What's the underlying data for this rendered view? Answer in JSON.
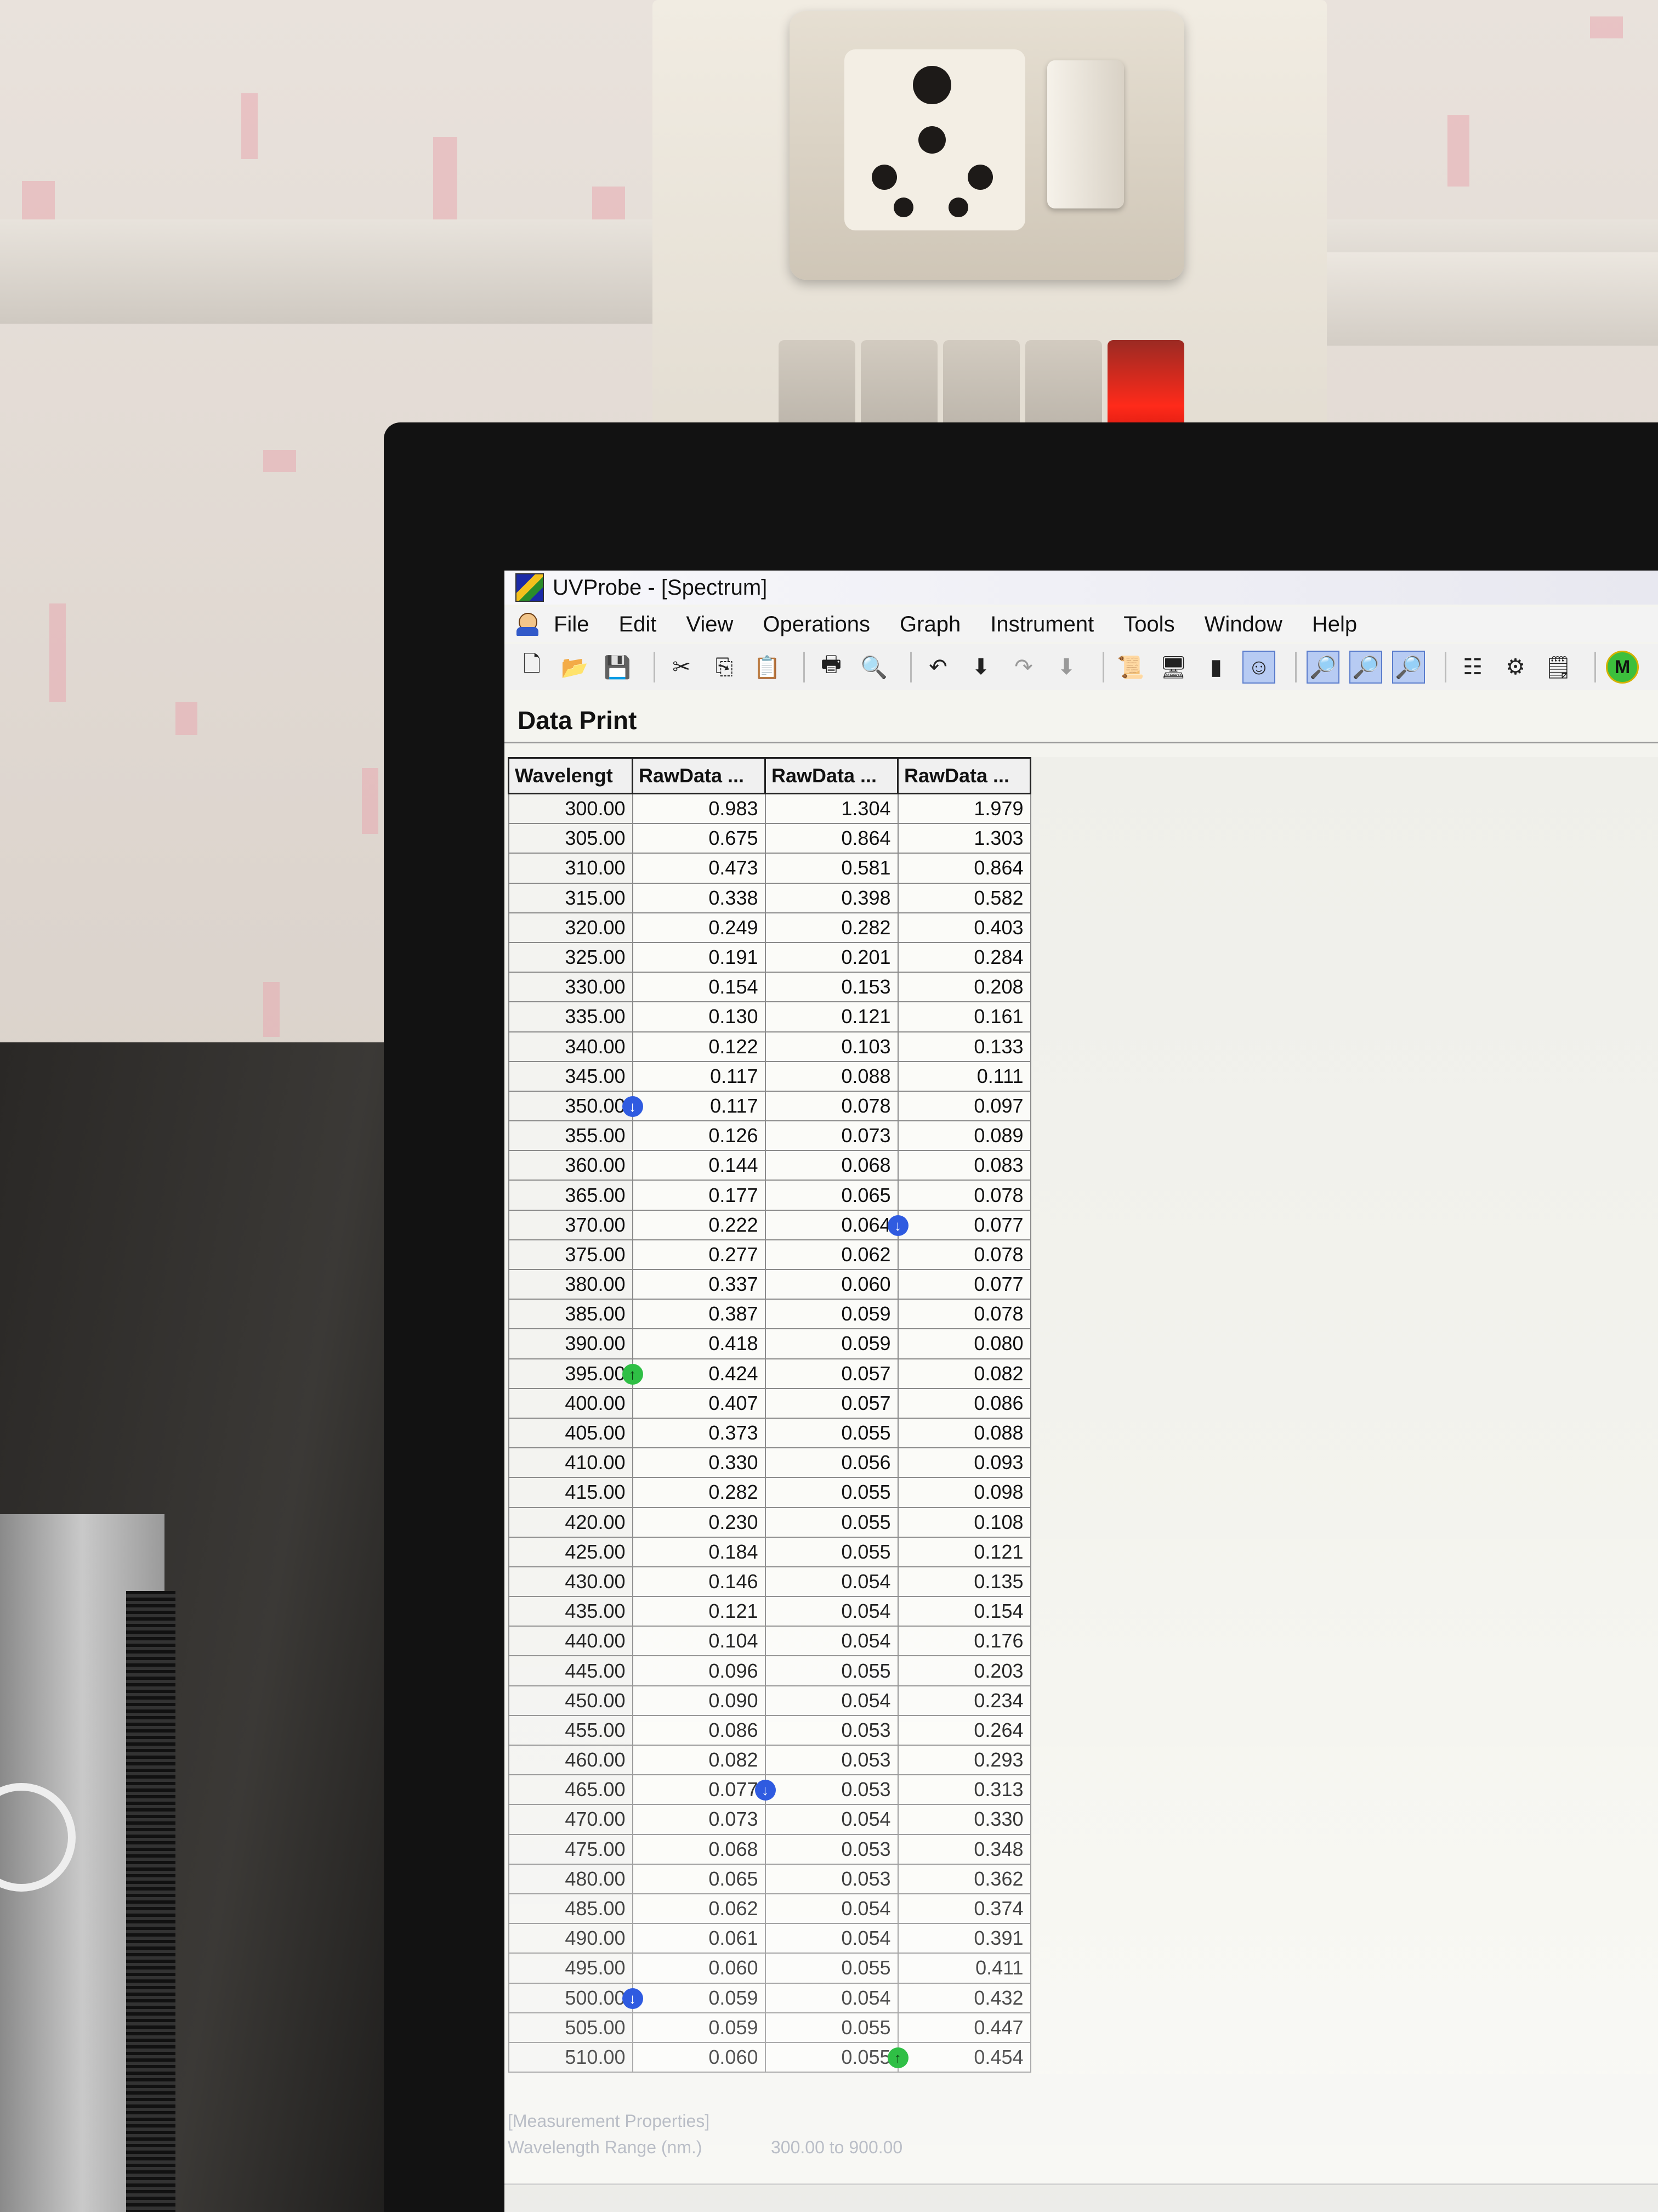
{
  "window": {
    "title": "UVProbe - [Spectrum]"
  },
  "menu": [
    "File",
    "Edit",
    "View",
    "Operations",
    "Graph",
    "Instrument",
    "Tools",
    "Window",
    "Help"
  ],
  "toolbar": {
    "icons": [
      "new-file-icon",
      "open-folder-icon",
      "save-disk-icon",
      "cut-icon",
      "copy-icon",
      "paste-icon",
      "print-icon",
      "print-preview-icon",
      "undo-icon",
      "undo-dropdown-icon",
      "redo-icon",
      "redo-dropdown-icon",
      "scroll-icon",
      "monitor-icon",
      "bars-icon",
      "person-icon",
      "zoom-icon",
      "zoom-box-icon",
      "zoom-tool-icon",
      "list-icon",
      "gear-icon",
      "properties-icon",
      "m-icon"
    ],
    "active": [
      "person-icon",
      "zoom-icon",
      "zoom-box-icon",
      "zoom-tool-icon"
    ],
    "m_label": "M"
  },
  "panel": {
    "title": "Data Print"
  },
  "table": {
    "columns": [
      "Wavelengt",
      "RawData ...",
      "RawData ...",
      "RawData ..."
    ],
    "rows": [
      [
        "300.00",
        "0.983",
        "1.304",
        "1.979"
      ],
      [
        "305.00",
        "0.675",
        "0.864",
        "1.303"
      ],
      [
        "310.00",
        "0.473",
        "0.581",
        "0.864"
      ],
      [
        "315.00",
        "0.338",
        "0.398",
        "0.582"
      ],
      [
        "320.00",
        "0.249",
        "0.282",
        "0.403"
      ],
      [
        "325.00",
        "0.191",
        "0.201",
        "0.284"
      ],
      [
        "330.00",
        "0.154",
        "0.153",
        "0.208"
      ],
      [
        "335.00",
        "0.130",
        "0.121",
        "0.161"
      ],
      [
        "340.00",
        "0.122",
        "0.103",
        "0.133"
      ],
      [
        "345.00",
        "0.117",
        "0.088",
        "0.111"
      ],
      [
        "350.00",
        "0.117",
        "0.078",
        "0.097"
      ],
      [
        "355.00",
        "0.126",
        "0.073",
        "0.089"
      ],
      [
        "360.00",
        "0.144",
        "0.068",
        "0.083"
      ],
      [
        "365.00",
        "0.177",
        "0.065",
        "0.078"
      ],
      [
        "370.00",
        "0.222",
        "0.064",
        "0.077"
      ],
      [
        "375.00",
        "0.277",
        "0.062",
        "0.078"
      ],
      [
        "380.00",
        "0.337",
        "0.060",
        "0.077"
      ],
      [
        "385.00",
        "0.387",
        "0.059",
        "0.078"
      ],
      [
        "390.00",
        "0.418",
        "0.059",
        "0.080"
      ],
      [
        "395.00",
        "0.424",
        "0.057",
        "0.082"
      ],
      [
        "400.00",
        "0.407",
        "0.057",
        "0.086"
      ],
      [
        "405.00",
        "0.373",
        "0.055",
        "0.088"
      ],
      [
        "410.00",
        "0.330",
        "0.056",
        "0.093"
      ],
      [
        "415.00",
        "0.282",
        "0.055",
        "0.098"
      ],
      [
        "420.00",
        "0.230",
        "0.055",
        "0.108"
      ],
      [
        "425.00",
        "0.184",
        "0.055",
        "0.121"
      ],
      [
        "430.00",
        "0.146",
        "0.054",
        "0.135"
      ],
      [
        "435.00",
        "0.121",
        "0.054",
        "0.154"
      ],
      [
        "440.00",
        "0.104",
        "0.054",
        "0.176"
      ],
      [
        "445.00",
        "0.096",
        "0.055",
        "0.203"
      ],
      [
        "450.00",
        "0.090",
        "0.054",
        "0.234"
      ],
      [
        "455.00",
        "0.086",
        "0.053",
        "0.264"
      ],
      [
        "460.00",
        "0.082",
        "0.053",
        "0.293"
      ],
      [
        "465.00",
        "0.077",
        "0.053",
        "0.313"
      ],
      [
        "470.00",
        "0.073",
        "0.054",
        "0.330"
      ],
      [
        "475.00",
        "0.068",
        "0.053",
        "0.348"
      ],
      [
        "480.00",
        "0.065",
        "0.053",
        "0.362"
      ],
      [
        "485.00",
        "0.062",
        "0.054",
        "0.374"
      ],
      [
        "490.00",
        "0.061",
        "0.054",
        "0.391"
      ],
      [
        "495.00",
        "0.060",
        "0.055",
        "0.411"
      ],
      [
        "500.00",
        "0.059",
        "0.054",
        "0.432"
      ],
      [
        "505.00",
        "0.059",
        "0.055",
        "0.447"
      ],
      [
        "510.00",
        "0.060",
        "0.055",
        "0.454"
      ]
    ],
    "markers": [
      {
        "row": 10,
        "col": 0,
        "kind": "down",
        "color": "#2f5be0"
      },
      {
        "row": 14,
        "col": 2,
        "kind": "down",
        "color": "#2f5be0"
      },
      {
        "row": 19,
        "col": 0,
        "kind": "up",
        "color": "#2fbf45"
      },
      {
        "row": 33,
        "col": 1,
        "kind": "down",
        "color": "#2f5be0"
      },
      {
        "row": 40,
        "col": 0,
        "kind": "down",
        "color": "#2f5be0"
      },
      {
        "row": 42,
        "col": 2,
        "kind": "up",
        "color": "#2fbf45"
      }
    ]
  },
  "properties": {
    "header": "[Measurement Properties]",
    "wavelength_label": "Wavelength Range (nm.)",
    "wavelength_value": "300.00 to 900.00"
  }
}
